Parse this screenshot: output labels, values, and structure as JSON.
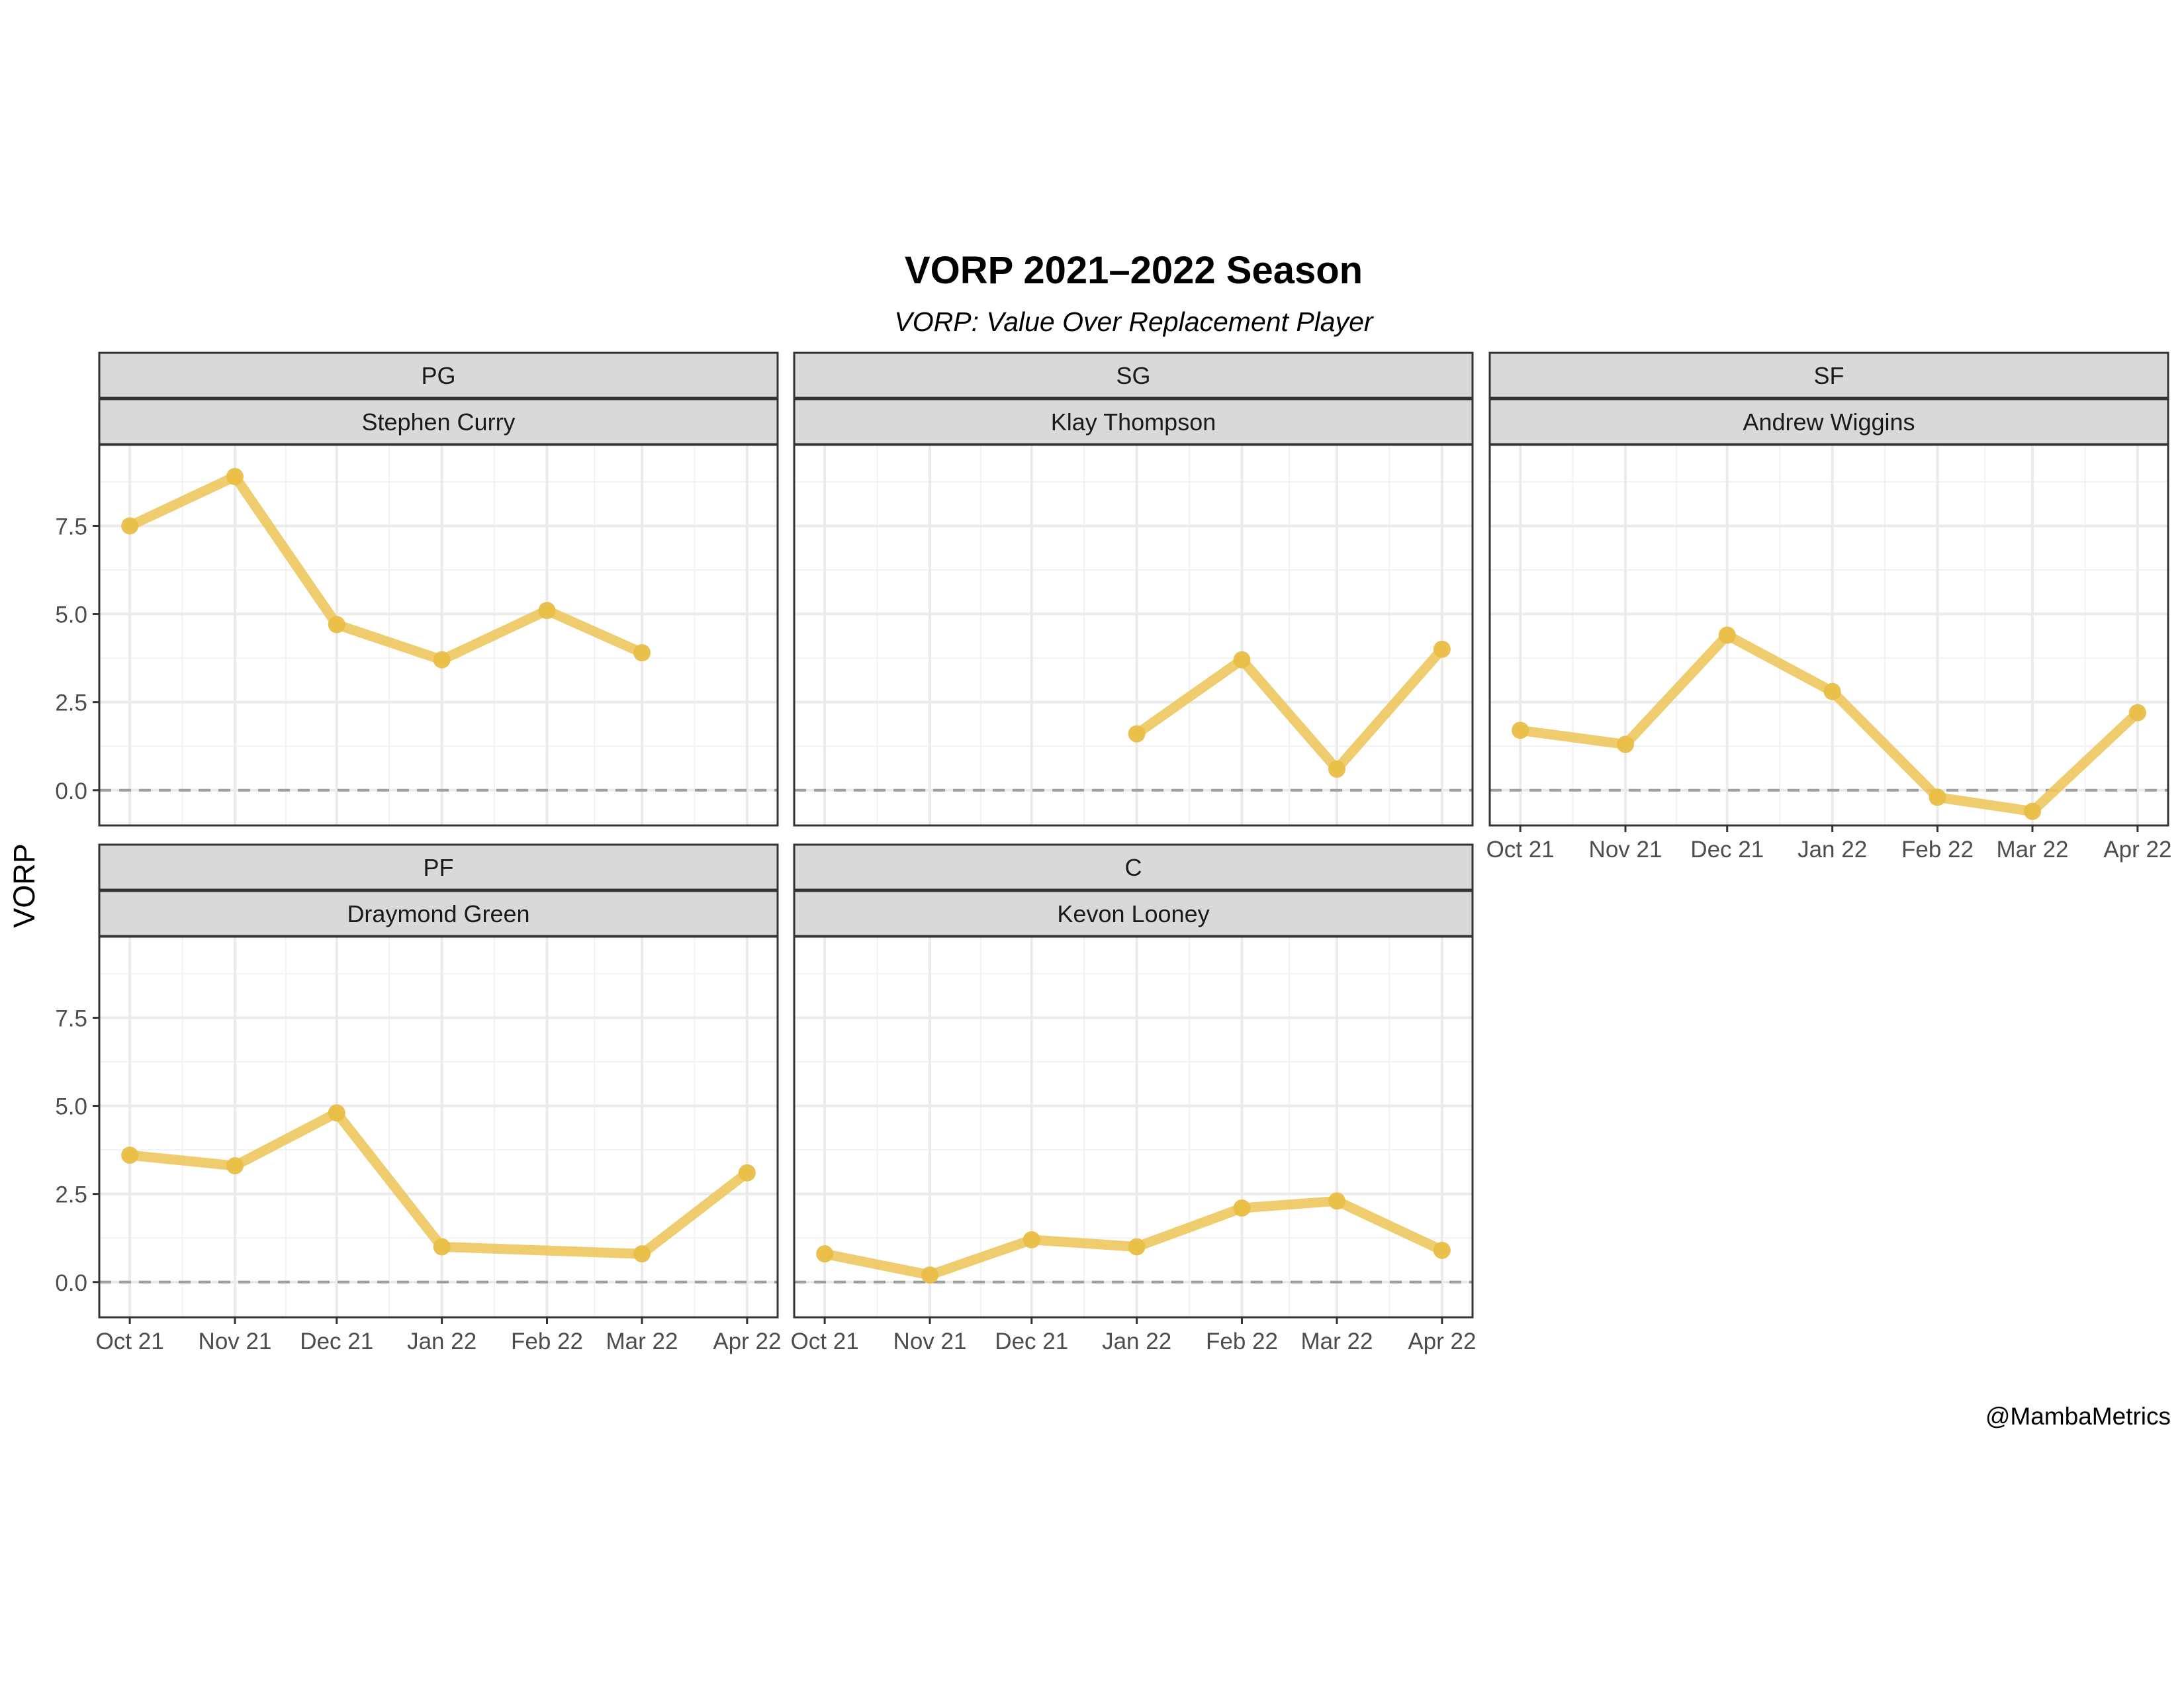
{
  "chart_data": {
    "type": "line",
    "title": "VORP 2021–2022 Season",
    "subtitle": "VORP: Value Over Replacement Player",
    "ylabel": "VORP",
    "xlabel": "",
    "caption": "@MambaMetrics",
    "ylim": [
      -1.0,
      9.8
    ],
    "y_ticks": [
      0.0,
      2.5,
      5.0,
      7.5
    ],
    "y_tick_labels": [
      "0.0",
      "2.5",
      "5.0",
      "7.5"
    ],
    "x_ticks": [
      "2021-10-01",
      "2021-11-01",
      "2021-12-01",
      "2022-01-01",
      "2022-02-01",
      "2022-03-01",
      "2022-04-01"
    ],
    "x_tick_labels": [
      "Oct 21",
      "Nov 21",
      "Dec 21",
      "Jan 22",
      "Feb 22",
      "Mar 22",
      "Apr 22"
    ],
    "xlim": [
      "2021-09-22",
      "2022-04-10"
    ],
    "reference_line": 0,
    "grid": true,
    "line_color": "#EDC75D",
    "point_color": "#E9BE47",
    "panels": [
      {
        "position": "PG",
        "player": "Stephen Curry",
        "x": [
          "2021-10-01",
          "2021-11-01",
          "2021-12-01",
          "2022-01-01",
          "2022-02-01",
          "2022-03-01"
        ],
        "values": [
          7.5,
          8.9,
          4.7,
          3.7,
          5.1,
          3.9
        ]
      },
      {
        "position": "SG",
        "player": "Klay Thompson",
        "x": [
          "2022-01-01",
          "2022-02-01",
          "2022-03-01",
          "2022-04-01"
        ],
        "values": [
          1.6,
          3.7,
          0.6,
          4.0
        ]
      },
      {
        "position": "SF",
        "player": "Andrew Wiggins",
        "x": [
          "2021-10-01",
          "2021-11-01",
          "2021-12-01",
          "2022-01-01",
          "2022-02-01",
          "2022-03-01",
          "2022-04-01"
        ],
        "values": [
          1.7,
          1.3,
          4.4,
          2.8,
          -0.2,
          -0.6,
          2.2
        ]
      },
      {
        "position": "PF",
        "player": "Draymond Green",
        "x": [
          "2021-10-01",
          "2021-11-01",
          "2021-12-01",
          "2022-01-01",
          "2022-03-01",
          "2022-04-01"
        ],
        "values": [
          3.6,
          3.3,
          4.8,
          1.0,
          0.8,
          3.1
        ]
      },
      {
        "position": "C",
        "player": "Kevon Looney",
        "x": [
          "2021-10-01",
          "2021-11-01",
          "2021-12-01",
          "2022-01-01",
          "2022-02-01",
          "2022-03-01",
          "2022-04-01"
        ],
        "values": [
          0.8,
          0.2,
          1.2,
          1.0,
          2.1,
          2.3,
          0.9
        ]
      }
    ]
  }
}
